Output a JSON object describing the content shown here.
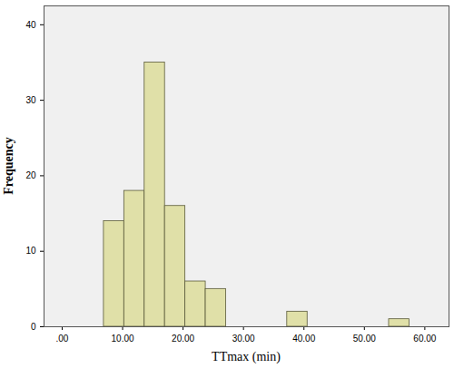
{
  "chart_data": {
    "type": "histogram",
    "x_label": "TTmax (min)",
    "y_label": "Frequency",
    "bins": [
      6.9,
      10.27,
      13.64,
      17.01,
      20.38,
      23.75,
      27.12,
      30.49,
      33.86,
      37.23,
      40.6,
      43.97,
      47.34,
      50.71,
      54.08,
      57.45
    ],
    "values": [
      14,
      18,
      35,
      16,
      6,
      5,
      0,
      0,
      0,
      2,
      0,
      0,
      0,
      0,
      1
    ],
    "color": "#e0e0a8",
    "xlim": [
      -3,
      64
    ],
    "xticks": [
      {
        "value": 0,
        "label": ".00"
      },
      {
        "value": 10,
        "label": "10.00"
      },
      {
        "value": 20,
        "label": "20.00"
      },
      {
        "value": 30,
        "label": "30.00"
      },
      {
        "value": 40,
        "label": "40.00"
      },
      {
        "value": 50,
        "label": "50.00"
      },
      {
        "value": 60,
        "label": "60.00"
      }
    ],
    "ylim": [
      0,
      42.5
    ],
    "yticks": [
      0,
      10,
      20,
      30,
      40
    ],
    "grid": false
  }
}
